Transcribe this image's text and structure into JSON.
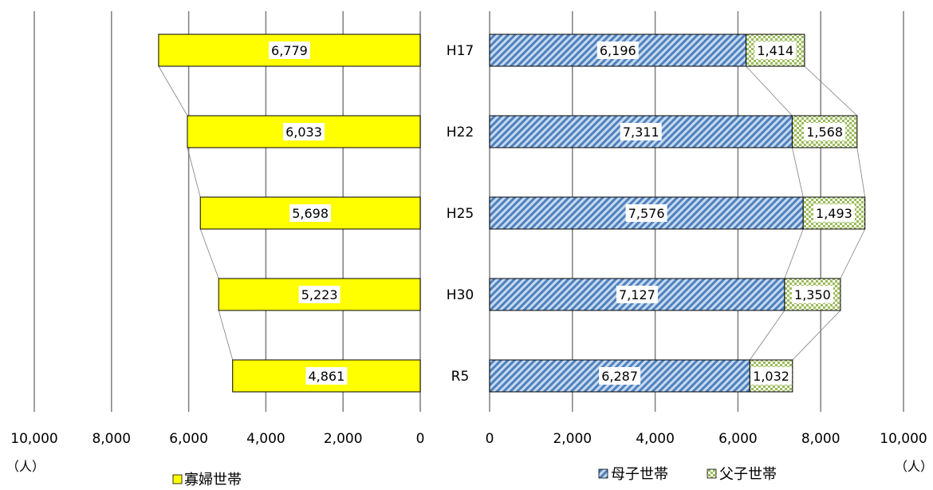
{
  "chart_data": {
    "type": "bar",
    "orientation": "horizontal",
    "layout": "butterfly",
    "categories": [
      "H17",
      "H22",
      "H25",
      "H30",
      "R5"
    ],
    "left_panel": {
      "series": [
        {
          "name": "寡婦世帯",
          "values": [
            6779,
            6033,
            5698,
            5223,
            4861
          ],
          "color": "#ffff00"
        }
      ],
      "xlim": [
        0,
        10000
      ],
      "ticks": [
        "10,000",
        "8,000",
        "6,000",
        "4,000",
        "2,000",
        "0"
      ],
      "unit": "（人）"
    },
    "right_panel": {
      "stacked": true,
      "series": [
        {
          "name": "母子世帯",
          "values": [
            6196,
            7311,
            7576,
            7127,
            6287
          ],
          "color": "#4f81bd",
          "pattern": "diagonal-stripes"
        },
        {
          "name": "父子世帯",
          "values": [
            1414,
            1568,
            1493,
            1350,
            1032
          ],
          "color": "#9bbb59",
          "pattern": "checkerboard"
        }
      ],
      "xlim": [
        0,
        10000
      ],
      "ticks": [
        "0",
        "2,000",
        "4,000",
        "6,000",
        "8,000",
        "10,000"
      ],
      "unit": "（人）"
    },
    "data_labels": {
      "left": [
        "6,779",
        "6,033",
        "5,698",
        "5,223",
        "4,861"
      ],
      "right_s1": [
        "6,196",
        "7,311",
        "7,576",
        "7,127",
        "6,287"
      ],
      "right_s2": [
        "1,414",
        "1,568",
        "1,493",
        "1,350",
        "1,032"
      ]
    },
    "legend": {
      "left": [
        "寡婦世帯"
      ],
      "right": [
        "母子世帯",
        "父子世帯"
      ],
      "placement": "bottom"
    },
    "grid": true,
    "series_lines": true
  }
}
